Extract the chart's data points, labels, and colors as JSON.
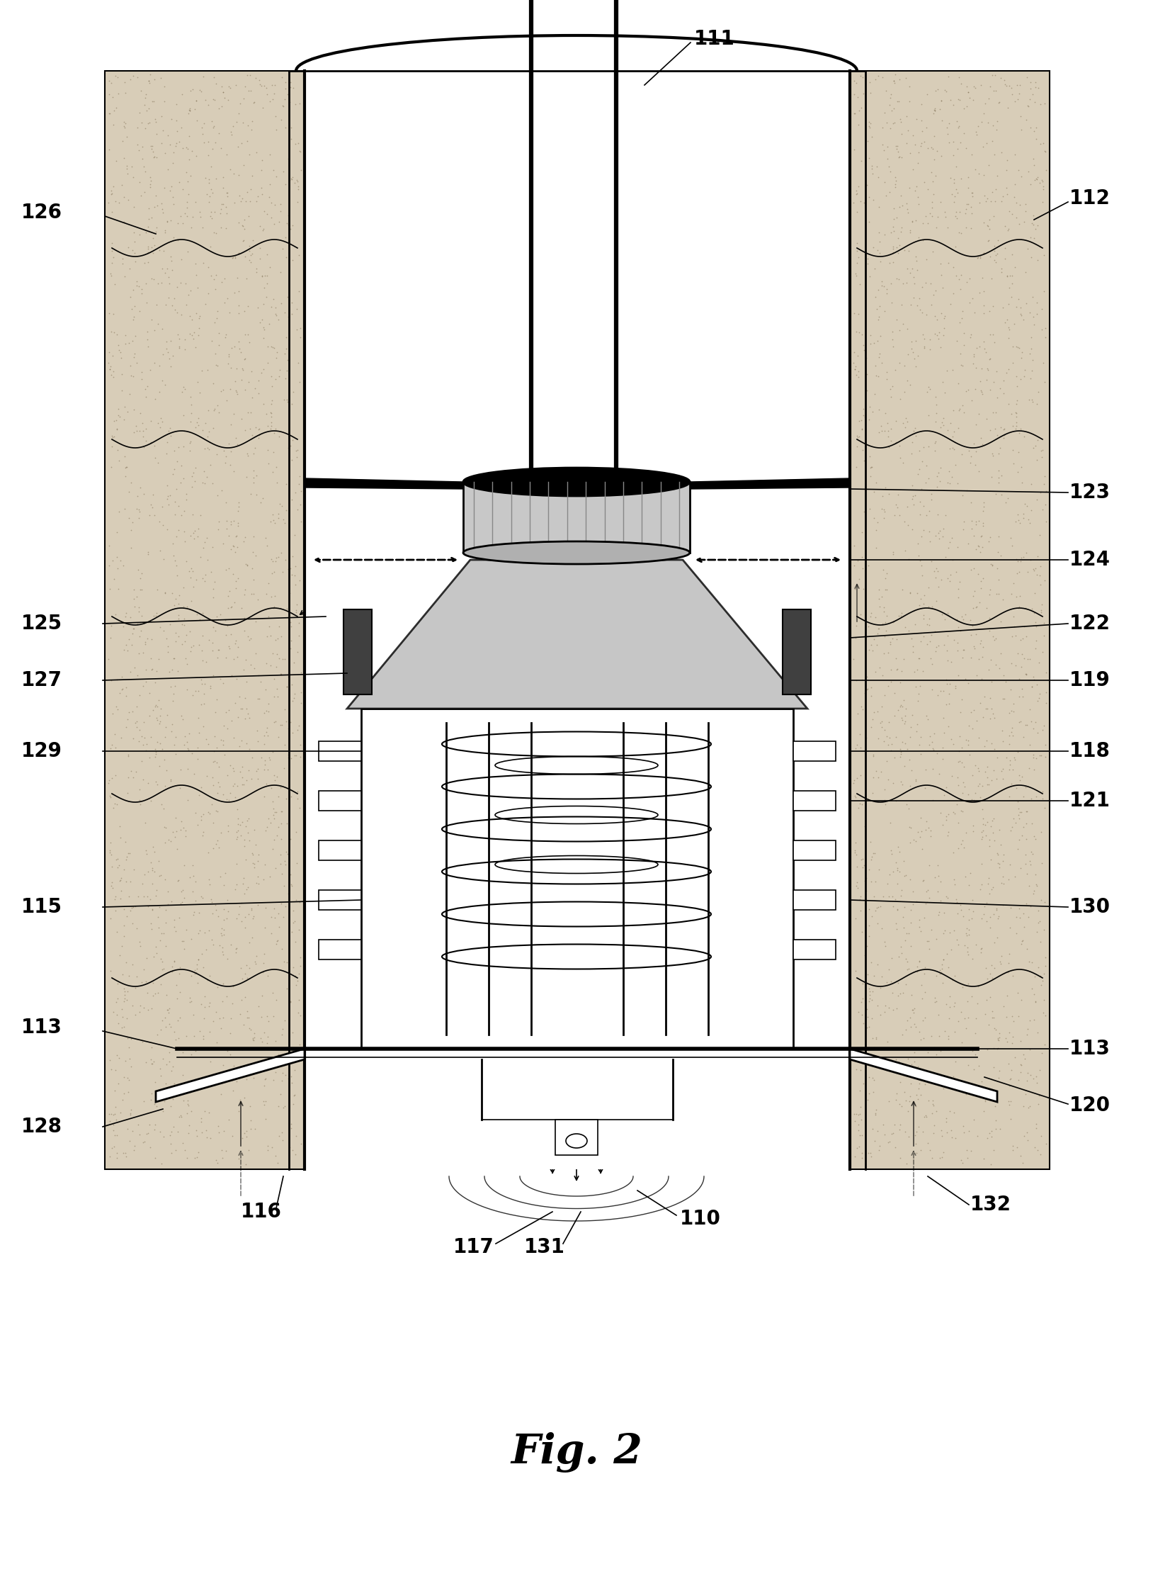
{
  "title": "Fig. 2",
  "title_fontsize": 42,
  "title_fontstyle": "italic",
  "title_fontweight": "bold",
  "bg_color": "#ffffff",
  "label_fontsize": 20,
  "label_fontweight": "bold",
  "fig_width": 16.28,
  "fig_height": 22.24,
  "dpi": 100
}
